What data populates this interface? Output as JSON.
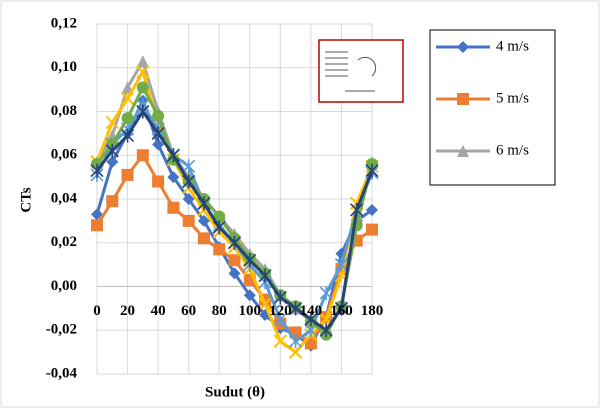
{
  "chart_data": {
    "type": "line",
    "x_label": "Sudut (θ)",
    "y_label": "CTs",
    "x": [
      0,
      10,
      20,
      30,
      40,
      50,
      60,
      70,
      80,
      90,
      100,
      110,
      120,
      130,
      140,
      150,
      160,
      170,
      180
    ],
    "xlim": [
      0,
      180
    ],
    "xticks": [
      0,
      20,
      40,
      60,
      80,
      100,
      120,
      140,
      160,
      180
    ],
    "ylim": [
      -0.04,
      0.12
    ],
    "yticks": [
      {
        "value": -0.04,
        "label": "-0,04"
      },
      {
        "value": -0.02,
        "label": "-0,02"
      },
      {
        "value": 0,
        "label": "0,00"
      },
      {
        "value": 0.02,
        "label": "0,02"
      },
      {
        "value": 0.04,
        "label": "0,04"
      },
      {
        "value": 0.06,
        "label": "0,06"
      },
      {
        "value": 0.08,
        "label": "0,08"
      },
      {
        "value": 0.1,
        "label": "0,10"
      },
      {
        "value": 0.12,
        "label": "0,12"
      }
    ],
    "grid": true,
    "legend": "upper right",
    "series": [
      {
        "name": "4 m/s",
        "color": "#4472c4",
        "marker": "diamond",
        "values": [
          0.033,
          0.057,
          0.07,
          0.085,
          0.065,
          0.05,
          0.04,
          0.03,
          0.018,
          0.006,
          -0.004,
          -0.013,
          -0.019,
          -0.022,
          -0.027,
          -0.014,
          0.015,
          0.03,
          0.035
        ]
      },
      {
        "name": "5 m/s",
        "color": "#ed7d31",
        "marker": "square",
        "values": [
          0.028,
          0.039,
          0.051,
          0.06,
          0.048,
          0.036,
          0.03,
          0.022,
          0.017,
          0.012,
          0.003,
          -0.006,
          -0.017,
          -0.021,
          -0.026,
          -0.014,
          0.008,
          0.021,
          0.026
        ]
      },
      {
        "name": "6 m/s",
        "color": "#a5a5a5",
        "marker": "triangle",
        "values": [
          0.057,
          0.069,
          0.091,
          0.103,
          0.08,
          0.06,
          0.05,
          0.04,
          0.032,
          0.024,
          0.015,
          0.008,
          -0.004,
          -0.01,
          -0.016,
          -0.02,
          -0.009,
          0.033,
          0.057
        ]
      },
      {
        "color": "#ffc000",
        "marker": "x",
        "values": [
          0.057,
          0.075,
          0.086,
          0.098,
          0.075,
          0.058,
          0.045,
          0.035,
          0.025,
          0.018,
          0.008,
          -0.008,
          -0.025,
          -0.03,
          -0.022,
          -0.015,
          0.005,
          0.038,
          0.055
        ]
      },
      {
        "color": "#5b9bd5",
        "marker": "star",
        "values": [
          0.051,
          0.065,
          0.072,
          0.083,
          0.072,
          0.06,
          0.055,
          0.038,
          0.028,
          0.02,
          0.01,
          0.002,
          -0.015,
          -0.025,
          -0.02,
          -0.003,
          0.01,
          0.035,
          0.052
        ]
      },
      {
        "color": "#70ad47",
        "marker": "circle",
        "values": [
          0.056,
          0.065,
          0.077,
          0.091,
          0.078,
          0.058,
          0.048,
          0.04,
          0.032,
          0.022,
          0.013,
          0.006,
          -0.004,
          -0.009,
          -0.016,
          -0.022,
          -0.009,
          0.028,
          0.056
        ]
      },
      {
        "color": "#264478",
        "marker": "star",
        "values": [
          0.053,
          0.062,
          0.069,
          0.08,
          0.07,
          0.06,
          0.048,
          0.038,
          0.027,
          0.02,
          0.012,
          0.005,
          -0.005,
          -0.01,
          -0.015,
          -0.02,
          -0.01,
          0.035,
          0.053
        ]
      }
    ]
  }
}
